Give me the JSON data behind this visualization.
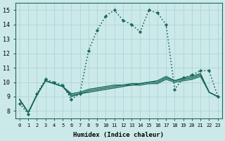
{
  "xlabel": "Humidex (Indice chaleur)",
  "xlim": [
    -0.5,
    23.5
  ],
  "ylim": [
    7.5,
    15.5
  ],
  "yticks": [
    8,
    9,
    10,
    11,
    12,
    13,
    14,
    15
  ],
  "xticks": [
    0,
    1,
    2,
    3,
    4,
    5,
    6,
    7,
    8,
    9,
    10,
    11,
    12,
    13,
    14,
    15,
    16,
    17,
    18,
    19,
    20,
    21,
    22,
    23
  ],
  "bg_color": "#cce9e9",
  "line_color": "#1a6b5a",
  "grid_color": "#aad0d0",
  "main_line": {
    "x": [
      0,
      1,
      2,
      3,
      4,
      5,
      6,
      7,
      8,
      9,
      10,
      11,
      12,
      13,
      14,
      15,
      16,
      17,
      18,
      19,
      20,
      21,
      22,
      23
    ],
    "y": [
      8.5,
      7.8,
      9.2,
      10.2,
      10.0,
      9.8,
      8.8,
      9.2,
      12.2,
      13.6,
      14.6,
      15.0,
      14.3,
      14.0,
      13.5,
      15.0,
      14.8,
      14.0,
      9.5,
      10.3,
      10.5,
      10.8,
      10.8,
      9.0
    ],
    "linewidth": 1.2,
    "linestyle": ":"
  },
  "trend_lines": [
    {
      "x": [
        0,
        1,
        2,
        3,
        4,
        5,
        6,
        7,
        8,
        9,
        10,
        11,
        12,
        13,
        14,
        15,
        16,
        17,
        18,
        19,
        20,
        21,
        22,
        23
      ],
      "y": [
        8.8,
        7.9,
        9.1,
        10.1,
        9.9,
        9.7,
        9.2,
        9.3,
        9.5,
        9.6,
        9.7,
        9.8,
        9.8,
        9.9,
        9.9,
        10.0,
        10.1,
        10.4,
        10.1,
        10.3,
        10.4,
        10.6,
        9.3,
        9.0
      ],
      "linewidth": 1.0,
      "linestyle": "-"
    },
    {
      "x": [
        0,
        1,
        2,
        3,
        4,
        5,
        6,
        7,
        8,
        9,
        10,
        11,
        12,
        13,
        14,
        15,
        16,
        17,
        18,
        19,
        20,
        21,
        22,
        23
      ],
      "y": [
        8.8,
        7.9,
        9.1,
        10.1,
        9.9,
        9.7,
        9.1,
        9.2,
        9.4,
        9.5,
        9.6,
        9.7,
        9.8,
        9.8,
        9.9,
        10.0,
        10.0,
        10.3,
        10.1,
        10.2,
        10.3,
        10.5,
        9.3,
        9.0
      ],
      "linewidth": 1.0,
      "linestyle": "-"
    },
    {
      "x": [
        0,
        1,
        2,
        3,
        4,
        5,
        6,
        7,
        8,
        9,
        10,
        11,
        12,
        13,
        14,
        15,
        16,
        17,
        18,
        19,
        20,
        21,
        22,
        23
      ],
      "y": [
        8.8,
        7.9,
        9.1,
        10.1,
        9.9,
        9.7,
        9.0,
        9.2,
        9.3,
        9.4,
        9.5,
        9.6,
        9.7,
        9.8,
        9.8,
        9.9,
        9.9,
        10.2,
        10.0,
        10.1,
        10.2,
        10.4,
        9.3,
        9.0
      ],
      "linewidth": 1.0,
      "linestyle": "-"
    }
  ]
}
